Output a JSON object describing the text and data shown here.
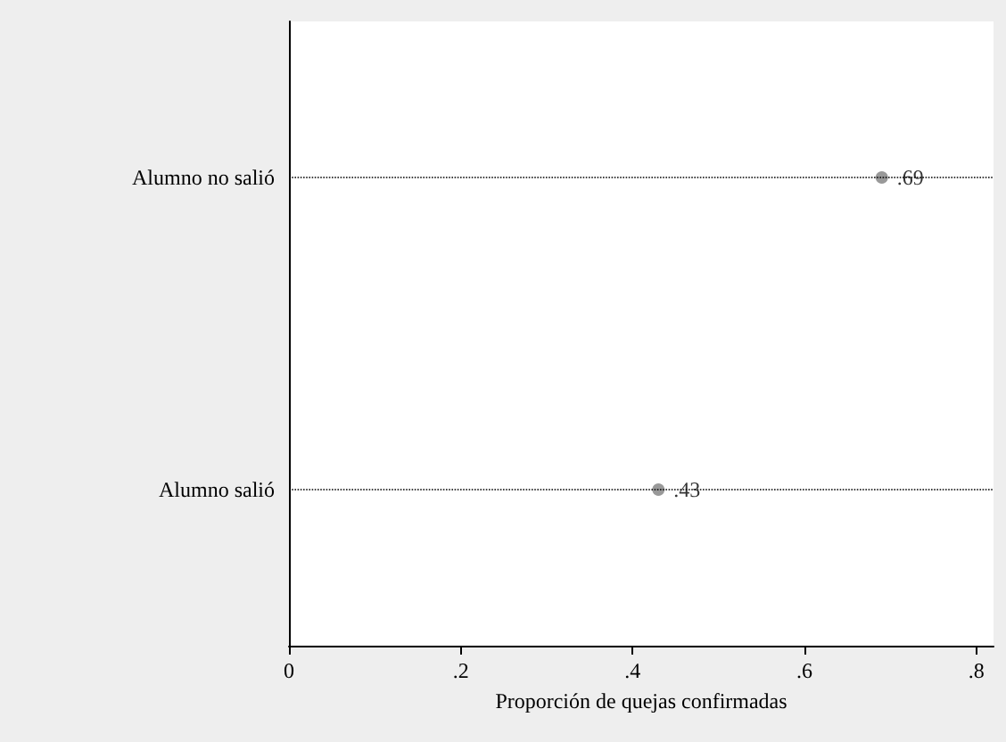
{
  "chart_data": {
    "type": "scatter",
    "xlabel": "Proporción de quejas confirmadas",
    "categories": [
      "Alumno no salió",
      "Alumno salió"
    ],
    "orientation": "horizontal",
    "series": [
      {
        "color": "#7f7f7f",
        "values": [
          0.69,
          0.43
        ],
        "value_labels": [
          ".69",
          ".43"
        ]
      }
    ],
    "xlim": [
      0,
      0.82
    ],
    "xticks": [
      {
        "value": 0,
        "label": "0"
      },
      {
        "value": 0.2,
        "label": ".2"
      },
      {
        "value": 0.4,
        "label": ".4"
      },
      {
        "value": 0.6,
        "label": ".6"
      },
      {
        "value": 0.8,
        "label": ".8"
      }
    ],
    "grid": "y",
    "line_style": "dotted",
    "marker": "circle"
  }
}
